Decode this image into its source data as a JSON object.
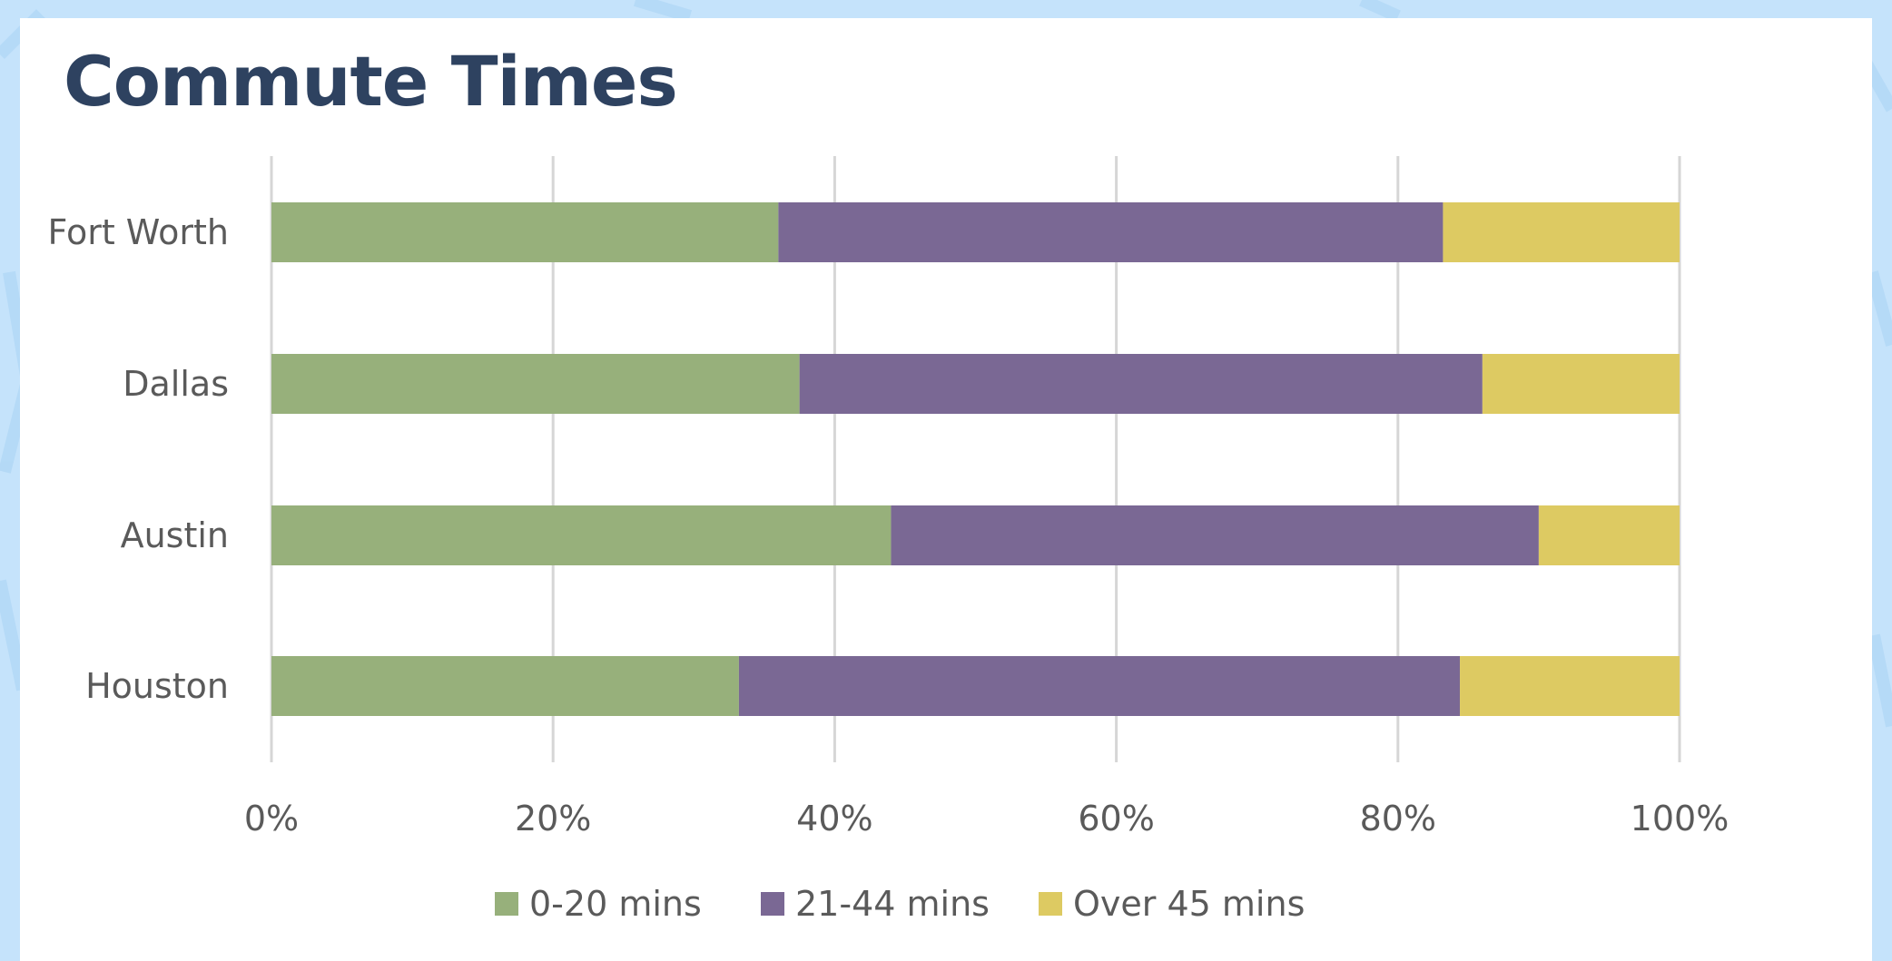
{
  "chart_data": {
    "type": "bar",
    "orientation": "horizontal",
    "stacked": "percent",
    "title": "Commute Times",
    "categories": [
      "Fort Worth",
      "Dallas",
      "Austin",
      "Houston"
    ],
    "series": [
      {
        "name": "0-20 mins",
        "color": "#97b07b",
        "values": [
          36,
          37.5,
          44,
          33.2
        ]
      },
      {
        "name": "21-44 mins",
        "color": "#7a6894",
        "values": [
          47.2,
          48.5,
          46,
          51.2
        ]
      },
      {
        "name": "Over 45 mins",
        "color": "#ddca62",
        "values": [
          16.8,
          14,
          10,
          15.6
        ]
      }
    ],
    "xlim": [
      0,
      100
    ],
    "x_ticks": [
      "0%",
      "20%",
      "40%",
      "60%",
      "80%",
      "100%"
    ],
    "xlabel": "",
    "ylabel": "",
    "grid": "vertical",
    "legend": "bottom"
  }
}
